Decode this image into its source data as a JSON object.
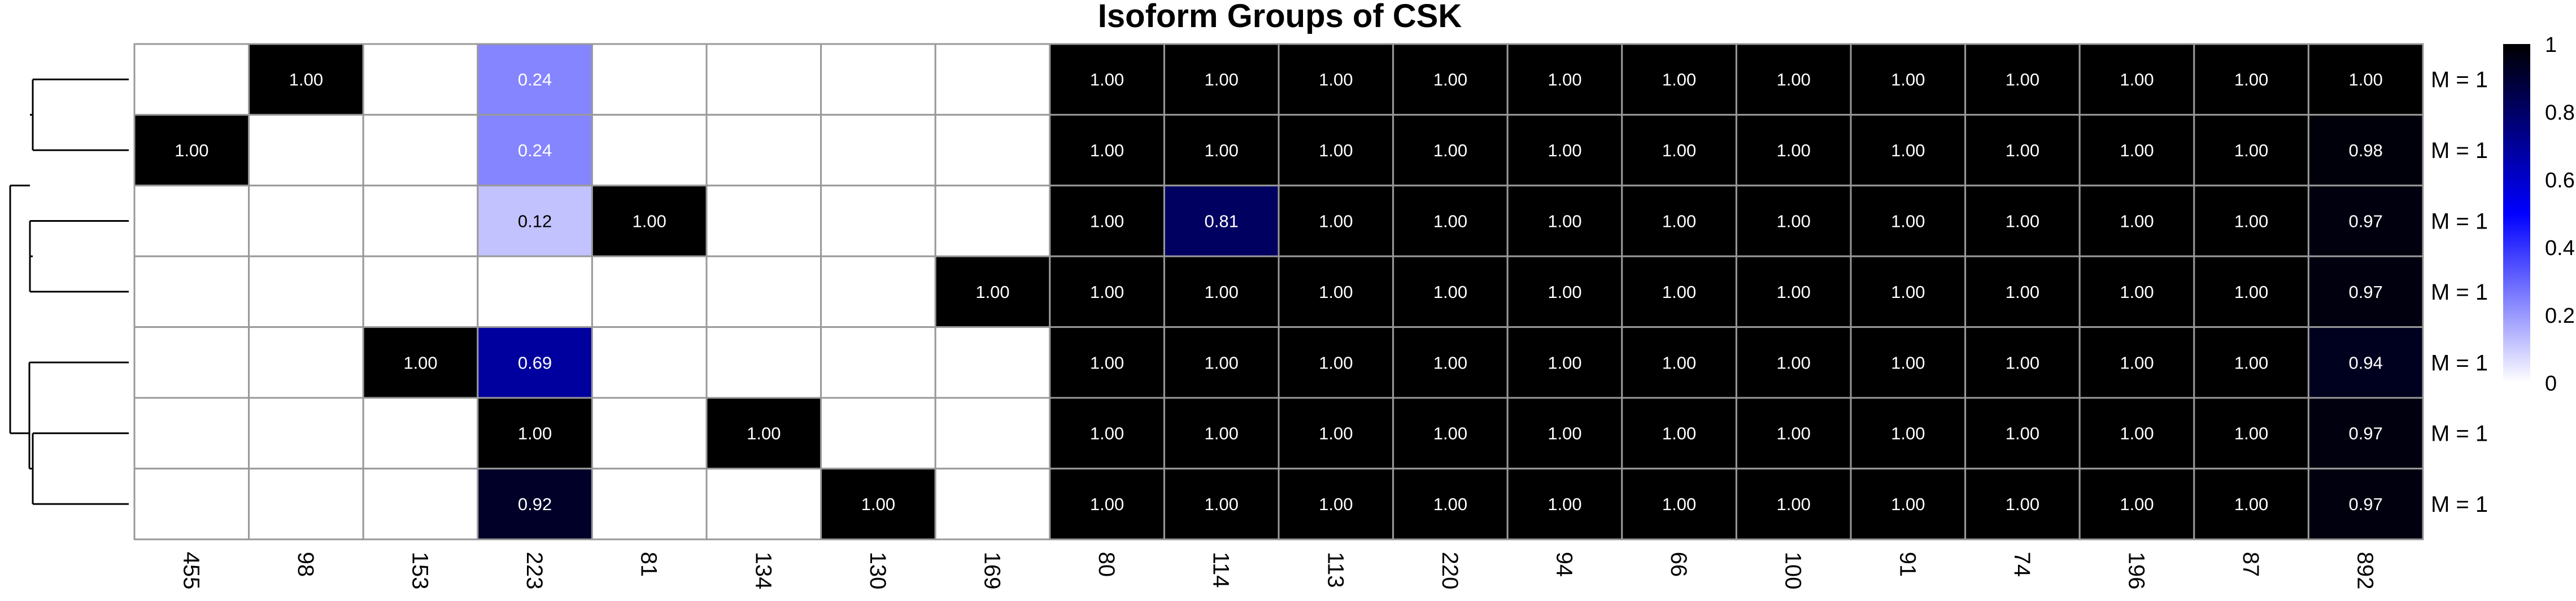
{
  "chart_data": {
    "type": "heatmap",
    "title": "Isoform Groups of CSK",
    "columns": [
      "455",
      "98",
      "153",
      "223",
      "81",
      "134",
      "130",
      "169",
      "80",
      "114",
      "113",
      "220",
      "94",
      "66",
      "100",
      "91",
      "74",
      "196",
      "87",
      "892"
    ],
    "row_labels": [
      "M = 1",
      "M = 1",
      "M = 1",
      "M = 1",
      "M = 1",
      "M = 1",
      "M = 1"
    ],
    "values": [
      [
        null,
        1.0,
        null,
        0.24,
        null,
        null,
        null,
        null,
        1.0,
        1.0,
        1.0,
        1.0,
        1.0,
        1.0,
        1.0,
        1.0,
        1.0,
        1.0,
        1.0,
        1.0
      ],
      [
        1.0,
        null,
        null,
        0.24,
        null,
        null,
        null,
        null,
        1.0,
        1.0,
        1.0,
        1.0,
        1.0,
        1.0,
        1.0,
        1.0,
        1.0,
        1.0,
        1.0,
        0.98
      ],
      [
        null,
        null,
        null,
        0.12,
        1.0,
        null,
        null,
        null,
        1.0,
        0.81,
        1.0,
        1.0,
        1.0,
        1.0,
        1.0,
        1.0,
        1.0,
        1.0,
        1.0,
        0.97
      ],
      [
        null,
        null,
        null,
        null,
        null,
        null,
        null,
        1.0,
        1.0,
        1.0,
        1.0,
        1.0,
        1.0,
        1.0,
        1.0,
        1.0,
        1.0,
        1.0,
        1.0,
        0.97
      ],
      [
        null,
        null,
        1.0,
        0.69,
        null,
        null,
        null,
        null,
        1.0,
        1.0,
        1.0,
        1.0,
        1.0,
        1.0,
        1.0,
        1.0,
        1.0,
        1.0,
        1.0,
        0.94
      ],
      [
        null,
        null,
        null,
        1.0,
        null,
        1.0,
        null,
        null,
        1.0,
        1.0,
        1.0,
        1.0,
        1.0,
        1.0,
        1.0,
        1.0,
        1.0,
        1.0,
        1.0,
        0.97
      ],
      [
        null,
        null,
        null,
        0.92,
        null,
        null,
        1.0,
        null,
        1.0,
        1.0,
        1.0,
        1.0,
        1.0,
        1.0,
        1.0,
        1.0,
        1.0,
        1.0,
        1.0,
        0.97
      ]
    ],
    "color_scale": {
      "low": "#ffffff",
      "mid": "#0000ff",
      "high": "#000000",
      "domain": [
        0,
        1
      ],
      "ticks": [
        "0",
        "0.2",
        "0.4",
        "0.6",
        "0.8",
        "1"
      ]
    },
    "grid_color": "#999999",
    "legend": "right",
    "dendrogram": "left"
  }
}
